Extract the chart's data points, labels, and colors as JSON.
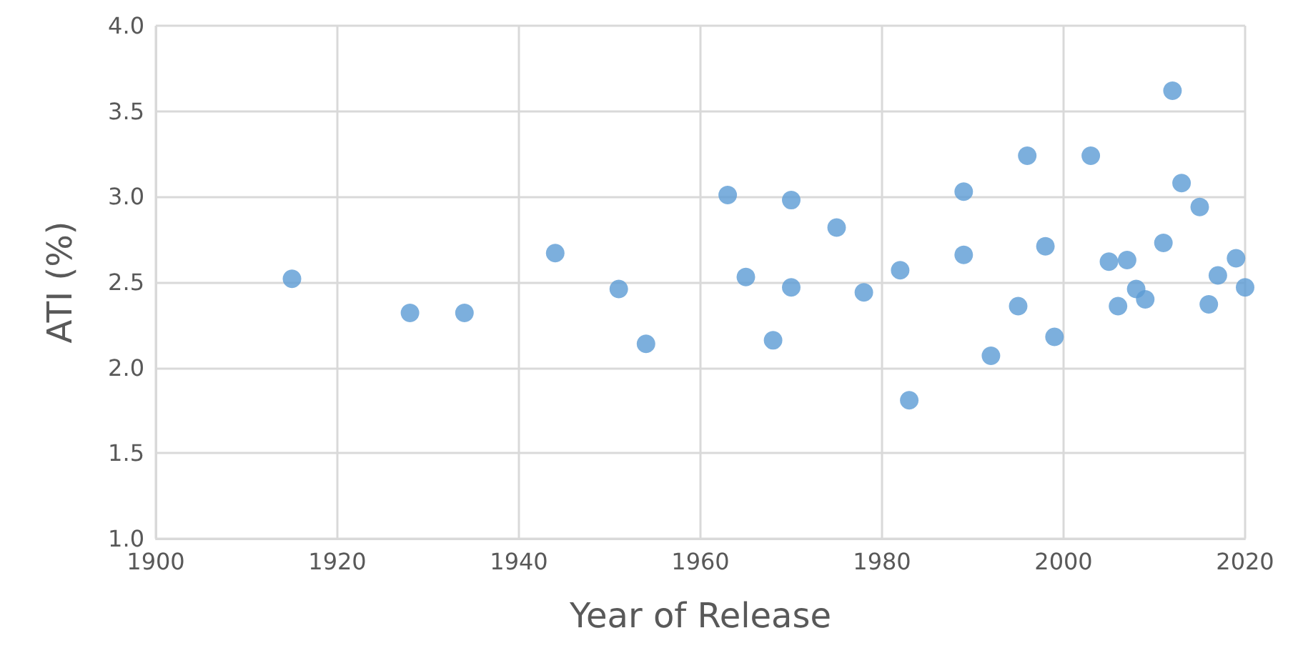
{
  "chart_data": {
    "type": "scatter",
    "xlabel": "Year of Release",
    "ylabel": "ATI (%)",
    "x": [
      1915,
      1928,
      1934,
      1944,
      1951,
      1954,
      1963,
      1965,
      1968,
      1970,
      1970,
      1975,
      1978,
      1982,
      1983,
      1989,
      1989,
      1992,
      1995,
      1996,
      1998,
      1999,
      2003,
      2005,
      2006,
      2007,
      2008,
      2009,
      2011,
      2012,
      2013,
      2015,
      2016,
      2017,
      2019,
      2020
    ],
    "values": [
      2.52,
      2.32,
      2.32,
      2.67,
      2.46,
      2.14,
      3.01,
      2.53,
      2.16,
      2.98,
      2.47,
      2.82,
      2.44,
      2.57,
      1.81,
      3.03,
      2.66,
      2.07,
      2.36,
      3.24,
      2.71,
      2.18,
      3.24,
      2.62,
      2.36,
      2.63,
      2.46,
      2.4,
      2.73,
      3.62,
      3.08,
      2.94,
      2.37,
      2.54,
      2.64,
      2.47
    ],
    "color": "#5b9bd5",
    "marker": "circle",
    "grid": true,
    "xlim": [
      1900,
      2020
    ],
    "xticks": [
      1900,
      1920,
      1940,
      1960,
      1980,
      2000,
      2020
    ],
    "ylim": [
      1.0,
      4.0
    ],
    "yticks": [
      {
        "value": 1.0,
        "label": "1.0"
      },
      {
        "value": 1.5,
        "label": "1.5"
      },
      {
        "value": 2.0,
        "label": "2.0"
      },
      {
        "value": 2.5,
        "label": "2.5"
      },
      {
        "value": 3.0,
        "label": "3.0"
      },
      {
        "value": 3.5,
        "label": "3.5"
      },
      {
        "value": 4.0,
        "label": "4.0"
      }
    ]
  }
}
